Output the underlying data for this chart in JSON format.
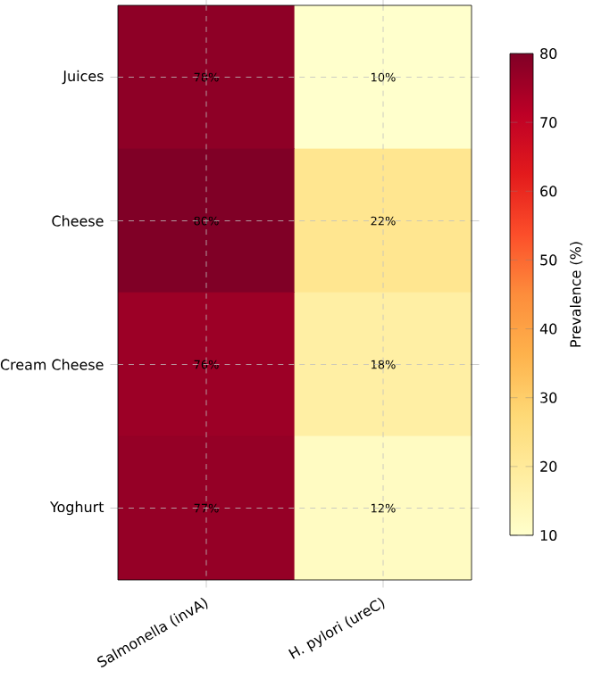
{
  "chart_data": {
    "type": "heatmap",
    "categories": [
      "Salmonella (invA)",
      "H. pylori (ureC)"
    ],
    "y_categories": [
      "Juices",
      "Cheese",
      "Cream Cheese",
      "Yoghurt"
    ],
    "cells": [
      [
        78,
        10
      ],
      [
        80,
        22
      ],
      [
        76,
        18
      ],
      [
        77,
        12
      ]
    ],
    "cell_labels": [
      [
        "78%",
        "10%"
      ],
      [
        "80%",
        "22%"
      ],
      [
        "76%",
        "18%"
      ],
      [
        "77%",
        "12%"
      ]
    ],
    "clabel": "Prevalence (%)",
    "clim": [
      10,
      80
    ],
    "cticks": [
      10,
      20,
      30,
      40,
      50,
      60,
      70,
      80
    ],
    "grid": true
  }
}
